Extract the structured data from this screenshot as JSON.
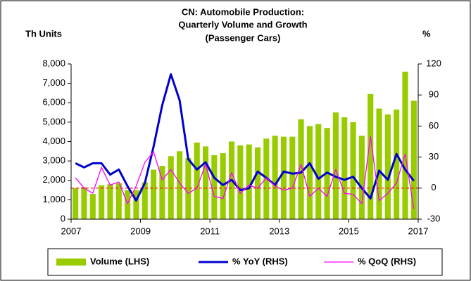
{
  "chart_data": {
    "type": "bar_line",
    "title_lines": [
      "CN: Automobile Production:",
      "Quarterly Volume and Growth",
      "(Passenger Cars)"
    ],
    "ylabel": "Th Units",
    "y2label": "%",
    "x": [
      2007.125,
      2007.375,
      2007.625,
      2007.875,
      2008.125,
      2008.375,
      2008.625,
      2008.875,
      2009.125,
      2009.375,
      2009.625,
      2009.875,
      2010.125,
      2010.375,
      2010.625,
      2010.875,
      2011.125,
      2011.375,
      2011.625,
      2011.875,
      2012.125,
      2012.375,
      2012.625,
      2012.875,
      2013.125,
      2013.375,
      2013.625,
      2013.875,
      2014.125,
      2014.375,
      2014.625,
      2014.875,
      2015.125,
      2015.375,
      2015.625,
      2015.875,
      2016.125,
      2016.375,
      2016.625,
      2016.875
    ],
    "xlim": [
      2007,
      2017
    ],
    "xticks": [
      2007,
      2009,
      2011,
      2013,
      2015,
      2017
    ],
    "ylim": [
      0,
      8000
    ],
    "yticks": [
      0,
      {
        "value": 1000,
        "label": "1,000"
      },
      {
        "value": 2000,
        "label": "2,000"
      },
      {
        "value": 3000,
        "label": "3,000"
      },
      {
        "value": 4000,
        "label": "4,000"
      },
      {
        "value": 5000,
        "label": "5,000"
      },
      {
        "value": 6000,
        "label": "6,000"
      },
      {
        "value": 7000,
        "label": "7,000"
      },
      {
        "value": 8000,
        "label": "8,000"
      }
    ],
    "y2lim": [
      -30,
      120
    ],
    "y2ticks": [
      -30,
      0,
      30,
      60,
      90,
      120
    ],
    "ref_line_y2": 0,
    "ref_line_color": "#ff0000",
    "series": [
      {
        "name": "Volume (LHS)",
        "type": "bar",
        "color": "#99cc00",
        "values": [
          1600,
          1650,
          1300,
          1750,
          1800,
          1850,
          1500,
          1500,
          1900,
          2550,
          2750,
          3250,
          3500,
          3150,
          3950,
          3750,
          3300,
          3400,
          4000,
          3800,
          3850,
          3700,
          4150,
          4300,
          4250,
          4250,
          5150,
          4800,
          4900,
          4700,
          5500,
          5250,
          5000,
          4300,
          6450,
          5700,
          5400,
          5650,
          7600,
          6100
        ]
      },
      {
        "name": "% YoY (RHS)",
        "type": "line",
        "axis": "y2",
        "color": "#0000cc",
        "values": [
          24,
          20,
          24,
          24,
          13,
          18,
          2,
          -12,
          5,
          40,
          80,
          110,
          85,
          28,
          18,
          25,
          10,
          3,
          8,
          -2,
          0,
          16,
          10,
          3,
          16,
          14,
          15,
          24,
          9,
          15,
          11,
          8,
          11,
          0,
          -10,
          17,
          8,
          33,
          18,
          7
        ]
      },
      {
        "name": "% QoQ (RHS)",
        "type": "line",
        "axis": "y2",
        "color": "#ff00ff",
        "values": [
          10,
          0,
          -5,
          20,
          3,
          6,
          -15,
          2,
          25,
          35,
          8,
          18,
          5,
          -5,
          0,
          23,
          -8,
          -10,
          15,
          -5,
          3,
          0,
          10,
          2,
          -2,
          0,
          23,
          -8,
          0,
          -8,
          18,
          -5,
          -6,
          -15,
          50,
          -12,
          -5,
          5,
          33,
          -20
        ]
      }
    ]
  }
}
